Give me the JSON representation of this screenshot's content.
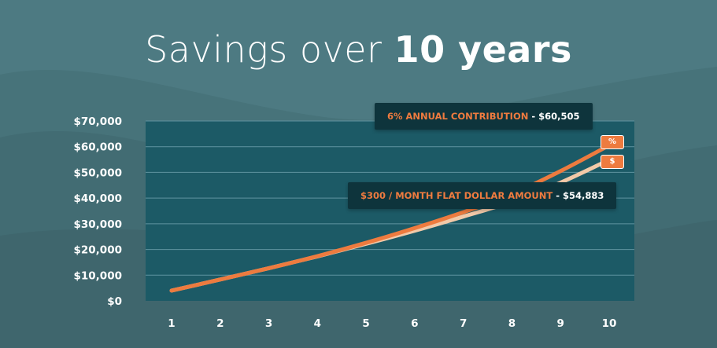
{
  "title": {
    "light": "Savings over",
    "bold": "10 years"
  },
  "colors": {
    "background": "#4d7a82",
    "plot_area": "#1c5a66",
    "percent_series": "#ed7b3f",
    "flat_series": "#f2c9a8",
    "callout_bg": "#0e343c",
    "callout_label": "#ef7b3f"
  },
  "callouts": {
    "percent": {
      "label": "6% ANNUAL CONTRIBUTION",
      "separator": " - ",
      "value": "$60,505"
    },
    "flat": {
      "label": "$300 / MONTH FLAT DOLLAR AMOUNT",
      "separator": " - ",
      "value": "$54,883"
    }
  },
  "badges": {
    "percent": "%",
    "flat": "$"
  },
  "chart_data": {
    "type": "line",
    "x": [
      1,
      2,
      3,
      4,
      5,
      6,
      7,
      8,
      9,
      10
    ],
    "xticks": [
      "1",
      "2",
      "3",
      "4",
      "5",
      "6",
      "7",
      "8",
      "9",
      "10"
    ],
    "ylim": [
      0,
      70000
    ],
    "yticks": [
      "$0",
      "$10,000",
      "$20,000",
      "$30,000",
      "$40,000",
      "$50,000",
      "$60,000",
      "$70,000"
    ],
    "ytick_values": [
      0,
      10000,
      20000,
      30000,
      40000,
      50000,
      60000,
      70000
    ],
    "grid": true,
    "series": [
      {
        "name": "6% ANNUAL CONTRIBUTION",
        "color": "#ed7b3f",
        "values": [
          4000,
          8300,
          12700,
          17400,
          22600,
          28300,
          34500,
          41500,
          50500,
          60505
        ]
      },
      {
        "name": "$300 / MONTH FLAT DOLLAR AMOUNT",
        "color": "#f2c9a8",
        "values": [
          4000,
          8300,
          12700,
          17300,
          22200,
          27300,
          32800,
          38600,
          46000,
          54883
        ]
      }
    ]
  }
}
